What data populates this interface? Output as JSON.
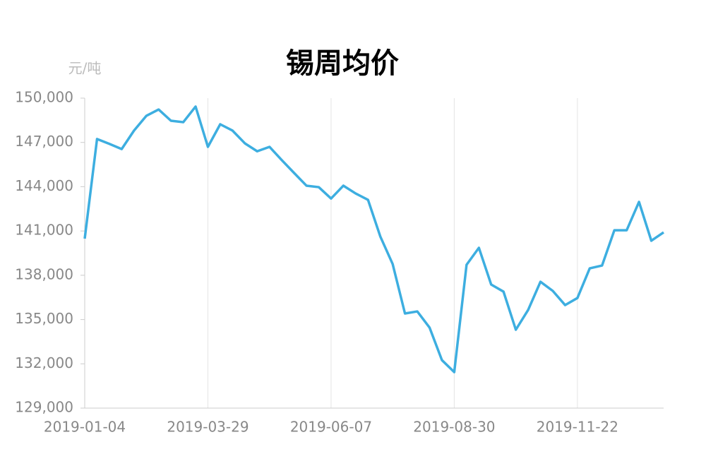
{
  "chart_data": {
    "type": "line",
    "title": "锡周均价",
    "y_unit": "元/吨",
    "categories": [
      "2019-01-04",
      null,
      null,
      null,
      null,
      null,
      null,
      null,
      null,
      null,
      "2019-03-29",
      null,
      null,
      null,
      null,
      null,
      null,
      null,
      null,
      null,
      "2019-06-07",
      null,
      null,
      null,
      null,
      null,
      null,
      null,
      null,
      null,
      "2019-08-30",
      null,
      null,
      null,
      null,
      null,
      null,
      null,
      null,
      null,
      "2019-11-22",
      null,
      null,
      null,
      null,
      null,
      null,
      null
    ],
    "series": [
      {
        "name": "锡周均价",
        "color": "#3daee0",
        "values": [
          140480,
          147230,
          146900,
          146550,
          147800,
          148800,
          149230,
          148470,
          148370,
          149430,
          146700,
          148230,
          147800,
          146940,
          146400,
          146700,
          145800,
          144930,
          144070,
          143970,
          143200,
          144070,
          143540,
          143110,
          140620,
          138760,
          135410,
          135550,
          134450,
          132250,
          131440,
          138710,
          139860,
          137370,
          136890,
          134310,
          135650,
          137560,
          136940,
          135980,
          136460,
          138470,
          138660,
          141050,
          141050,
          142970,
          140340,
          140910
        ]
      }
    ],
    "ylim": [
      129000,
      150000
    ],
    "yticks": [
      {
        "value": 129000,
        "label": "129,000"
      },
      {
        "value": 132000,
        "label": "132,000"
      },
      {
        "value": 135000,
        "label": "135,000"
      },
      {
        "value": 138000,
        "label": "138,000"
      },
      {
        "value": 141000,
        "label": "141,000"
      },
      {
        "value": 144000,
        "label": "144,000"
      },
      {
        "value": 147000,
        "label": "147,000"
      },
      {
        "value": 150000,
        "label": "150,000"
      }
    ],
    "grid": true
  }
}
